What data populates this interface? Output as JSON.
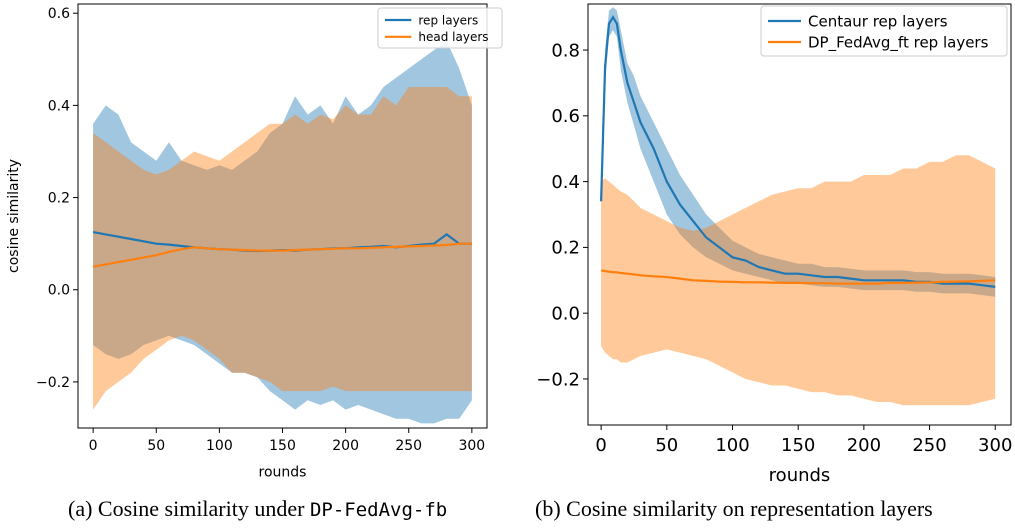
{
  "colors": {
    "blue": "#1f77b4",
    "orange": "#ff7f0e"
  },
  "chart_data": [
    {
      "type": "line",
      "x": [
        0,
        10,
        20,
        30,
        40,
        50,
        60,
        70,
        80,
        90,
        100,
        110,
        120,
        130,
        140,
        150,
        160,
        170,
        180,
        190,
        200,
        210,
        220,
        230,
        240,
        250,
        260,
        270,
        280,
        290,
        300
      ],
      "series": [
        {
          "name": "rep layers",
          "mean": [
            0.125,
            0.12,
            0.115,
            0.11,
            0.105,
            0.1,
            0.098,
            0.095,
            0.092,
            0.09,
            0.088,
            0.087,
            0.085,
            0.084,
            0.085,
            0.086,
            0.085,
            0.087,
            0.088,
            0.09,
            0.09,
            0.092,
            0.093,
            0.095,
            0.092,
            0.095,
            0.098,
            0.1,
            0.12,
            0.1,
            0.1
          ],
          "upper": [
            0.36,
            0.4,
            0.38,
            0.32,
            0.3,
            0.28,
            0.32,
            0.28,
            0.27,
            0.26,
            0.27,
            0.26,
            0.28,
            0.3,
            0.34,
            0.36,
            0.42,
            0.38,
            0.4,
            0.36,
            0.42,
            0.38,
            0.4,
            0.44,
            0.46,
            0.48,
            0.5,
            0.52,
            0.54,
            0.48,
            0.4
          ],
          "lower": [
            -0.12,
            -0.14,
            -0.15,
            -0.14,
            -0.12,
            -0.11,
            -0.1,
            -0.11,
            -0.12,
            -0.14,
            -0.16,
            -0.18,
            -0.18,
            -0.19,
            -0.22,
            -0.24,
            -0.26,
            -0.24,
            -0.25,
            -0.24,
            -0.26,
            -0.25,
            -0.26,
            -0.27,
            -0.28,
            -0.28,
            -0.29,
            -0.29,
            -0.28,
            -0.28,
            -0.24
          ]
        },
        {
          "name": "head layers",
          "mean": [
            0.05,
            0.055,
            0.06,
            0.065,
            0.07,
            0.075,
            0.082,
            0.088,
            0.092,
            0.09,
            0.088,
            0.087,
            0.086,
            0.085,
            0.085,
            0.085,
            0.086,
            0.087,
            0.088,
            0.089,
            0.09,
            0.09,
            0.091,
            0.092,
            0.093,
            0.094,
            0.095,
            0.096,
            0.097,
            0.1,
            0.1
          ],
          "upper": [
            0.34,
            0.32,
            0.3,
            0.28,
            0.26,
            0.25,
            0.26,
            0.28,
            0.3,
            0.29,
            0.28,
            0.3,
            0.32,
            0.34,
            0.36,
            0.36,
            0.38,
            0.36,
            0.38,
            0.37,
            0.4,
            0.38,
            0.38,
            0.42,
            0.4,
            0.44,
            0.44,
            0.44,
            0.44,
            0.42,
            0.42
          ],
          "lower": [
            -0.26,
            -0.22,
            -0.2,
            -0.18,
            -0.15,
            -0.13,
            -0.11,
            -0.1,
            -0.11,
            -0.13,
            -0.15,
            -0.18,
            -0.18,
            -0.19,
            -0.2,
            -0.22,
            -0.22,
            -0.22,
            -0.22,
            -0.21,
            -0.22,
            -0.22,
            -0.22,
            -0.22,
            -0.22,
            -0.22,
            -0.22,
            -0.22,
            -0.22,
            -0.22,
            -0.22
          ]
        }
      ],
      "xlabel": "rounds",
      "ylabel": "cosine similarity",
      "xlim": [
        -12,
        312
      ],
      "ylim": [
        -0.3,
        0.62
      ],
      "xticks": [
        0,
        50,
        100,
        150,
        200,
        250,
        300
      ],
      "yticks": [
        -0.2,
        0.0,
        0.2,
        0.4,
        0.6
      ],
      "ytick_labels": [
        "−0.2",
        "0.0",
        "0.2",
        "0.4",
        "0.6"
      ],
      "legend_position": "top-right",
      "caption_prefix": "(a) Cosine similarity under ",
      "caption_code": "DP-FedAvg-fb"
    },
    {
      "type": "line",
      "x": [
        0,
        3,
        6,
        9,
        12,
        15,
        20,
        25,
        30,
        40,
        50,
        60,
        70,
        80,
        90,
        100,
        110,
        120,
        130,
        140,
        150,
        160,
        170,
        180,
        190,
        200,
        210,
        220,
        230,
        240,
        250,
        260,
        270,
        280,
        290,
        300
      ],
      "series": [
        {
          "name": "Centaur rep layers",
          "mean": [
            0.34,
            0.75,
            0.88,
            0.9,
            0.88,
            0.8,
            0.7,
            0.64,
            0.58,
            0.5,
            0.4,
            0.33,
            0.28,
            0.23,
            0.2,
            0.17,
            0.16,
            0.14,
            0.13,
            0.12,
            0.12,
            0.115,
            0.11,
            0.11,
            0.105,
            0.1,
            0.1,
            0.1,
            0.1,
            0.095,
            0.095,
            0.09,
            0.09,
            0.09,
            0.085,
            0.08
          ],
          "upper": [
            0.34,
            0.8,
            0.92,
            0.93,
            0.92,
            0.86,
            0.76,
            0.72,
            0.66,
            0.58,
            0.5,
            0.42,
            0.36,
            0.3,
            0.26,
            0.22,
            0.2,
            0.18,
            0.17,
            0.16,
            0.15,
            0.15,
            0.14,
            0.14,
            0.135,
            0.13,
            0.13,
            0.13,
            0.13,
            0.125,
            0.125,
            0.12,
            0.12,
            0.12,
            0.115,
            0.11
          ],
          "lower": [
            0.34,
            0.7,
            0.84,
            0.86,
            0.84,
            0.74,
            0.64,
            0.57,
            0.5,
            0.4,
            0.3,
            0.24,
            0.2,
            0.17,
            0.15,
            0.13,
            0.12,
            0.11,
            0.1,
            0.09,
            0.09,
            0.085,
            0.08,
            0.08,
            0.075,
            0.07,
            0.07,
            0.07,
            0.07,
            0.065,
            0.065,
            0.06,
            0.06,
            0.06,
            0.055,
            0.05
          ]
        },
        {
          "name": "DP_FedAvg_ft rep layers",
          "mean": [
            0.13,
            0.128,
            0.126,
            0.125,
            0.124,
            0.122,
            0.12,
            0.118,
            0.115,
            0.112,
            0.11,
            0.105,
            0.1,
            0.098,
            0.096,
            0.095,
            0.094,
            0.094,
            0.093,
            0.092,
            0.092,
            0.091,
            0.091,
            0.09,
            0.09,
            0.09,
            0.09,
            0.092,
            0.092,
            0.093,
            0.094,
            0.095,
            0.096,
            0.097,
            0.098,
            0.1
          ],
          "upper": [
            0.4,
            0.41,
            0.4,
            0.39,
            0.38,
            0.37,
            0.36,
            0.34,
            0.32,
            0.3,
            0.28,
            0.26,
            0.25,
            0.26,
            0.28,
            0.3,
            0.32,
            0.34,
            0.36,
            0.37,
            0.38,
            0.38,
            0.4,
            0.4,
            0.4,
            0.42,
            0.42,
            0.42,
            0.44,
            0.44,
            0.46,
            0.46,
            0.48,
            0.48,
            0.46,
            0.44
          ],
          "lower": [
            -0.1,
            -0.12,
            -0.13,
            -0.14,
            -0.14,
            -0.15,
            -0.15,
            -0.14,
            -0.13,
            -0.12,
            -0.11,
            -0.12,
            -0.13,
            -0.14,
            -0.16,
            -0.18,
            -0.2,
            -0.21,
            -0.22,
            -0.22,
            -0.23,
            -0.24,
            -0.24,
            -0.25,
            -0.25,
            -0.26,
            -0.27,
            -0.27,
            -0.28,
            -0.28,
            -0.28,
            -0.28,
            -0.28,
            -0.28,
            -0.27,
            -0.26
          ]
        }
      ],
      "xlabel": "rounds",
      "ylabel": "",
      "xlim": [
        -10,
        312
      ],
      "ylim": [
        -0.34,
        0.94
      ],
      "xticks": [
        0,
        50,
        100,
        150,
        200,
        250,
        300
      ],
      "yticks": [
        -0.2,
        0.0,
        0.2,
        0.4,
        0.6,
        0.8
      ],
      "ytick_labels": [
        "−0.2",
        "0.0",
        "0.2",
        "0.4",
        "0.6",
        "0.8"
      ],
      "legend_position": "top-right",
      "caption_prefix": "(b) Cosine similarity on representation layers",
      "caption_code": ""
    }
  ]
}
